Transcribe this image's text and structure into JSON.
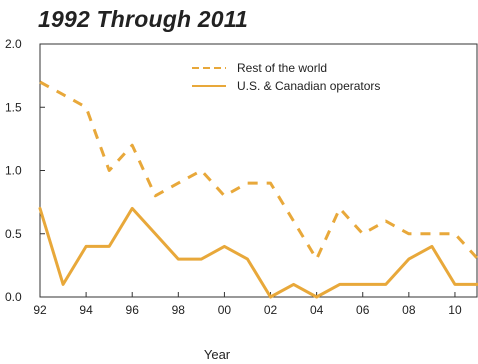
{
  "chart_data": {
    "type": "line",
    "title": "1992 Through 2011",
    "xlabel": "Year",
    "ylabel": "",
    "ylim": [
      0,
      2.0
    ],
    "xlim": [
      1992,
      2011
    ],
    "y_ticks": [
      "0.0",
      "0.5",
      "1.0",
      "1.5",
      "2.0"
    ],
    "x_ticks": [
      {
        "year": 1992,
        "label": "92"
      },
      {
        "year": 1994,
        "label": "94"
      },
      {
        "year": 1996,
        "label": "96"
      },
      {
        "year": 1998,
        "label": "98"
      },
      {
        "year": 2000,
        "label": "00"
      },
      {
        "year": 2002,
        "label": "02"
      },
      {
        "year": 2004,
        "label": "04"
      },
      {
        "year": 2006,
        "label": "06"
      },
      {
        "year": 2008,
        "label": "08"
      },
      {
        "year": 2010,
        "label": "10"
      }
    ],
    "legend_position": "top-right",
    "x": [
      1992,
      1993,
      1994,
      1995,
      1996,
      1997,
      1998,
      1999,
      2000,
      2001,
      2002,
      2003,
      2004,
      2005,
      2006,
      2007,
      2008,
      2009,
      2010,
      2011
    ],
    "series": [
      {
        "name": "Rest of the world",
        "style": "dashed",
        "color": "#e8a83a",
        "values": [
          1.7,
          1.6,
          1.5,
          1.0,
          1.2,
          0.8,
          0.9,
          1.0,
          0.8,
          0.9,
          0.9,
          0.6,
          0.3,
          0.7,
          0.5,
          0.6,
          0.5,
          0.5,
          0.5,
          0.3
        ]
      },
      {
        "name": "U.S. & Canadian operators",
        "style": "solid",
        "color": "#e8a83a",
        "values": [
          0.7,
          0.1,
          0.4,
          0.4,
          0.7,
          0.5,
          0.3,
          0.3,
          0.4,
          0.3,
          0.0,
          0.1,
          0.0,
          0.1,
          0.1,
          0.1,
          0.3,
          0.4,
          0.1,
          0.1
        ]
      }
    ]
  }
}
